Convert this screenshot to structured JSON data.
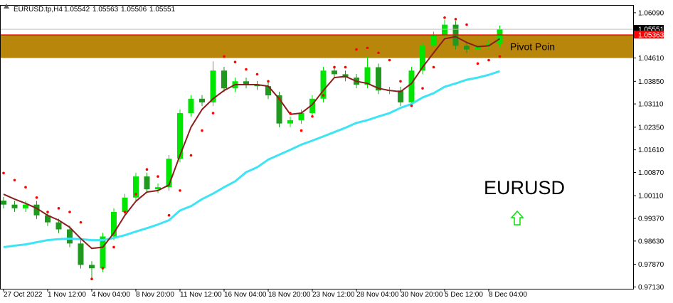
{
  "chart_data": {
    "type": "candlestick",
    "header": [
      "EURUSD.tp,H4",
      "1.05542",
      "1.05563",
      "1.05506",
      "1.05551"
    ],
    "annotation": "EURUSD",
    "ylim": [
      0.9707,
      1.0632
    ],
    "yticks": [
      {
        "value": 1.0609,
        "label": "1.06090"
      },
      {
        "value": 1.0461,
        "label": "1.04610"
      },
      {
        "value": 1.0385,
        "label": "1.03850"
      },
      {
        "value": 1.0311,
        "label": "1.03110"
      },
      {
        "value": 1.0235,
        "label": "1.02350"
      },
      {
        "value": 1.0161,
        "label": "1.01610"
      },
      {
        "value": 1.0087,
        "label": "1.00870"
      },
      {
        "value": 1.0011,
        "label": "1.00110"
      },
      {
        "value": 0.9937,
        "label": "0.99370"
      },
      {
        "value": 0.9863,
        "label": "0.98630"
      },
      {
        "value": 0.9787,
        "label": "0.97870"
      },
      {
        "value": 0.9713,
        "label": "0.97130"
      }
    ],
    "xticks": [
      {
        "value": 0,
        "label": "27 Oct 2022"
      },
      {
        "value": 4,
        "label": "1 Nov 12:00"
      },
      {
        "value": 8,
        "label": "4 Nov 04:00"
      },
      {
        "value": 12,
        "label": "8 Nov 20:00"
      },
      {
        "value": 16,
        "label": "11 Nov 12:00"
      },
      {
        "value": 20,
        "label": "16 Nov 04:00"
      },
      {
        "value": 24,
        "label": "18 Nov 20:00"
      },
      {
        "value": 28,
        "label": "23 Nov 12:00"
      },
      {
        "value": 32,
        "label": "28 Nov 04:00"
      },
      {
        "value": 36,
        "label": "30 Nov 20:00"
      },
      {
        "value": 40,
        "label": "5 Dec 12:00"
      },
      {
        "value": 44,
        "label": "8 Dec 04:00"
      }
    ],
    "up_color": "#00e600",
    "down_color": "#1f9a1f",
    "open": [
      0.9995,
      0.9982,
      0.997,
      0.9982,
      0.9947,
      0.9924,
      0.9901,
      0.9855,
      0.9785,
      0.9774,
      0.9878,
      0.9958,
      1.0005,
      1.0074,
      1.0032,
      1.0039,
      1.0132,
      1.0281,
      1.0328,
      1.0316,
      1.042,
      1.0362,
      1.0385,
      1.0374,
      1.0369,
      1.0339,
      1.0247,
      1.0258,
      1.0281,
      1.0328,
      1.042,
      1.0408,
      1.0397,
      1.0374,
      1.0431,
      1.0355,
      1.0355,
      1.0316,
      1.042,
      1.0501,
      1.0535,
      1.057,
      1.0501,
      1.0489,
      1.0501,
      1.0508
    ],
    "high": [
      1.0007,
      0.9994,
      0.9994,
      0.9994,
      0.9959,
      0.9936,
      0.9913,
      0.9867,
      0.9797,
      0.989,
      0.997,
      1.0017,
      1.0086,
      1.0086,
      1.0051,
      1.0144,
      1.0293,
      1.034,
      1.034,
      1.045,
      1.0432,
      1.0397,
      1.0397,
      1.0386,
      1.0381,
      1.0351,
      1.027,
      1.0293,
      1.034,
      1.0432,
      1.0432,
      1.042,
      1.0409,
      1.0466,
      1.0443,
      1.0367,
      1.0367,
      1.0432,
      1.0513,
      1.0547,
      1.0586,
      1.0582,
      1.0513,
      1.0513,
      1.052,
      1.0567
    ],
    "low": [
      0.997,
      0.9958,
      0.9958,
      0.9935,
      0.9912,
      0.9889,
      0.9843,
      0.9773,
      0.974,
      0.9762,
      0.9866,
      0.9946,
      0.9993,
      1.002,
      1.002,
      1.0027,
      1.012,
      1.0269,
      1.0304,
      1.0304,
      1.035,
      1.035,
      1.0362,
      1.0357,
      1.0327,
      1.0235,
      1.0235,
      1.0246,
      1.0269,
      1.0316,
      1.0396,
      1.0385,
      1.0362,
      1.0362,
      1.0343,
      1.0343,
      1.0304,
      1.0304,
      1.0408,
      1.0489,
      1.0523,
      1.0489,
      1.0477,
      1.0477,
      1.0489,
      1.0496
    ],
    "close": [
      0.9982,
      0.997,
      0.9982,
      0.9947,
      0.9924,
      0.9901,
      0.9855,
      0.9785,
      0.9774,
      0.9878,
      0.9958,
      1.0005,
      1.0074,
      1.0032,
      1.0039,
      1.0132,
      1.0281,
      1.0328,
      1.0316,
      1.042,
      1.0362,
      1.0385,
      1.0374,
      1.0369,
      1.0339,
      1.0247,
      1.0258,
      1.0281,
      1.0328,
      1.042,
      1.0408,
      1.0397,
      1.0374,
      1.0431,
      1.0355,
      1.0355,
      1.0316,
      1.042,
      1.0501,
      1.0535,
      1.057,
      1.0501,
      1.0489,
      1.0501,
      1.0508,
      1.0555
    ],
    "indicators": [
      {
        "color": "#3fe4f4",
        "line_width": 3,
        "values": [
          0.9843,
          0.9848,
          0.9852,
          0.9859,
          0.9866,
          0.9869,
          0.9871,
          0.9869,
          0.9866,
          0.9866,
          0.9873,
          0.9882,
          0.9894,
          0.9905,
          0.9917,
          0.9931,
          0.9963,
          0.9977,
          1.0,
          1.0018,
          1.0039,
          1.0058,
          1.0088,
          1.0104,
          1.0129,
          1.0145,
          1.0161,
          1.0178,
          1.0191,
          1.0205,
          1.0219,
          1.0233,
          1.0249,
          1.0258,
          1.027,
          1.0281,
          1.0298,
          1.0311,
          1.0332,
          1.0346,
          1.0367,
          1.0378,
          1.039,
          1.0397,
          1.0406,
          1.0418
        ]
      },
      {
        "color": "#8b1f1f",
        "line_width": 2,
        "values": [
          1.0016,
          1.0,
          0.9986,
          0.997,
          0.9947,
          0.9931,
          0.9908,
          0.9871,
          0.9839,
          0.9843,
          0.9889,
          0.9947,
          0.9993,
          1.0023,
          1.0028,
          1.0046,
          1.0143,
          1.0235,
          1.0293,
          1.0328,
          1.0355,
          1.0374,
          1.0374,
          1.0374,
          1.0369,
          1.0328,
          1.0277,
          1.0281,
          1.0309,
          1.0355,
          1.0397,
          1.0401,
          1.0385,
          1.0378,
          1.0362,
          1.0355,
          1.0351,
          1.0378,
          1.0431,
          1.0478,
          1.0524,
          1.0531,
          1.0512,
          1.0498,
          1.0501,
          1.0524
        ]
      }
    ],
    "sar": {
      "color": "#ff0000",
      "values": [
        1.0085,
        1.0062,
        1.0039,
        1.0005,
        0.9958,
        0.997,
        0.9958,
        0.9924,
        0.9739,
        0.9774,
        0.9843,
        0.9958,
        1.0016,
        1.0097,
        1.0074,
        0.9947,
        1.0028,
        1.0143,
        1.0224,
        1.0281,
        1.0466,
        1.0448,
        1.0424,
        1.0408,
        1.0385,
        1.0328,
        1.0281,
        1.0224,
        1.027,
        1.0339,
        1.0431,
        1.0431,
        1.0489,
        1.0494,
        1.0478,
        1.0454,
        1.0385,
        1.0305,
        1.0362,
        1.0431,
        1.0593,
        1.0588,
        1.057,
        1.0443,
        1.0454,
        1.0466
      ]
    },
    "zone": {
      "label": "Pivot Poin",
      "from": 1.0461,
      "to": 1.05363,
      "color": "#b8860b"
    },
    "price_lines": [
      {
        "value": 1.05551,
        "color": "#c0c0c0",
        "box_color": "#000000"
      },
      {
        "value": 1.05363,
        "color": "#ff0000",
        "box_color": "#ff0000"
      }
    ]
  }
}
